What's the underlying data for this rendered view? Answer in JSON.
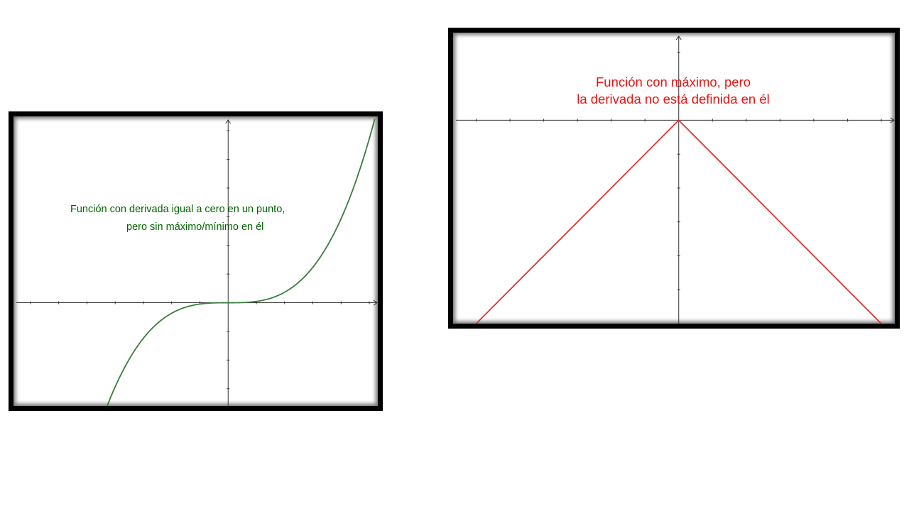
{
  "charts": [
    {
      "annotation_lines": [
        "Función con derivada igual a cero en un punto,",
        "pero sin máximo/mínimo en él"
      ],
      "annotation_color": "#006400",
      "curve_color": "#3a7d3a",
      "axis_color": "#333333"
    },
    {
      "annotation_lines": [
        "Función con máximo, pero",
        "la derivada no está definida en él"
      ],
      "annotation_color": "#ee1111",
      "curve_color": "#dd3333",
      "axis_color": "#333333"
    }
  ],
  "chart_data": [
    {
      "type": "line",
      "function": "x^3",
      "title": "",
      "xlabel": "",
      "ylabel": "",
      "xlim": [
        -7.5,
        5.3
      ],
      "ylim": [
        -3.6,
        6.4
      ],
      "grid": false,
      "series": [
        {
          "x": [
            -4.4,
            -4.0,
            -3.5,
            -3.0,
            -2.5,
            -2.0,
            -1.5,
            -1.0,
            -0.5,
            0.0,
            0.5,
            1.0,
            1.5,
            2.0,
            2.5,
            3.0,
            3.5,
            4.0,
            4.5,
            5.0,
            5.2
          ],
          "y": [
            -3.6,
            -2.73,
            -1.83,
            -1.15,
            -0.67,
            -0.34,
            -0.14,
            -0.04,
            -0.005,
            0.0,
            0.005,
            0.04,
            0.14,
            0.34,
            0.67,
            1.15,
            1.83,
            2.73,
            3.89,
            5.34,
            6.01
          ]
        }
      ]
    },
    {
      "type": "line",
      "function": "-|x|",
      "title": "",
      "xlabel": "",
      "ylabel": "",
      "xlim": [
        -6.6,
        6.4
      ],
      "ylim": [
        -6.0,
        2.5
      ],
      "grid": false,
      "series": [
        {
          "x": [
            -6.0,
            -3.0,
            0.0,
            3.0,
            6.0
          ],
          "y": [
            -6.0,
            -3.0,
            0.0,
            -3.0,
            -6.0
          ]
        }
      ]
    }
  ]
}
